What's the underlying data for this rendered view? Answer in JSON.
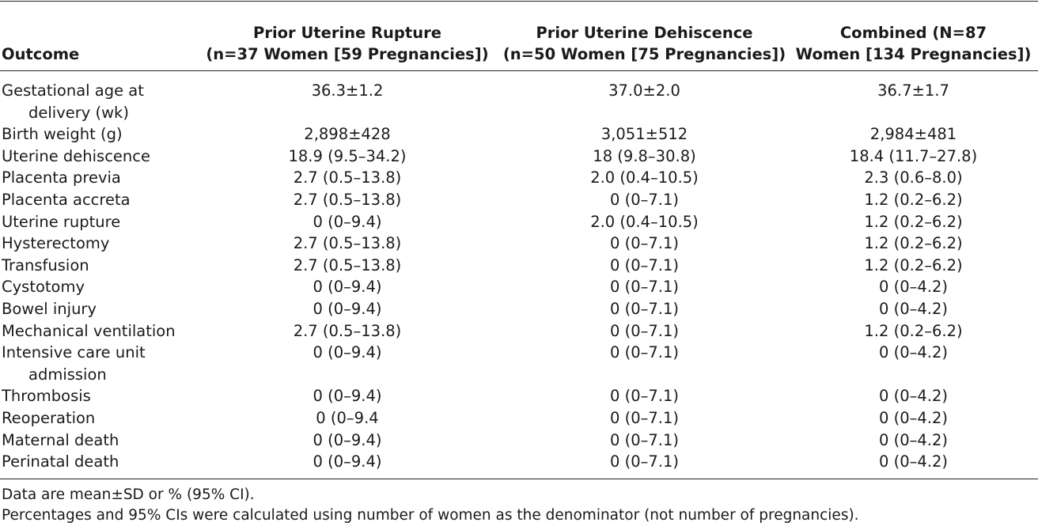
{
  "table": {
    "headers": {
      "outcome": "Outcome",
      "col1_line1": "Prior Uterine Rupture",
      "col1_line2": "(n=37 Women [59 Pregnancies])",
      "col2_line1": "Prior Uterine Dehiscence",
      "col2_line2": "(n=50 Women [75 Pregnancies])",
      "col3_line1": "Combined (N=87",
      "col3_line2": "Women [134 Pregnancies])"
    },
    "rows": [
      {
        "label": "Gestational age at",
        "label_cont": "delivery (wk)",
        "rupture": "36.3±1.2",
        "dehiscence": "37.0±2.0",
        "combined": "36.7±1.7"
      },
      {
        "label": "Birth weight (g)",
        "rupture": "2,898±428",
        "dehiscence": "3,051±512",
        "combined": "2,984±481"
      },
      {
        "label": "Uterine dehiscence",
        "rupture": "18.9 (9.5–34.2)",
        "dehiscence": "18 (9.8–30.8)",
        "combined": "18.4 (11.7–27.8)"
      },
      {
        "label": "Placenta previa",
        "rupture": "2.7 (0.5–13.8)",
        "dehiscence": "2.0 (0.4–10.5)",
        "combined": "2.3 (0.6–8.0)"
      },
      {
        "label": "Placenta accreta",
        "rupture": "2.7 (0.5–13.8)",
        "dehiscence": "0 (0–7.1)",
        "combined": "1.2 (0.2–6.2)"
      },
      {
        "label": "Uterine rupture",
        "rupture": "0 (0–9.4)",
        "dehiscence": "2.0 (0.4–10.5)",
        "combined": "1.2 (0.2–6.2)"
      },
      {
        "label": "Hysterectomy",
        "rupture": "2.7 (0.5–13.8)",
        "dehiscence": "0 (0–7.1)",
        "combined": "1.2 (0.2–6.2)"
      },
      {
        "label": "Transfusion",
        "rupture": "2.7 (0.5–13.8)",
        "dehiscence": "0 (0–7.1)",
        "combined": "1.2 (0.2–6.2)"
      },
      {
        "label": "Cystotomy",
        "rupture": "0 (0–9.4)",
        "dehiscence": "0 (0–7.1)",
        "combined": "0 (0–4.2)"
      },
      {
        "label": "Bowel injury",
        "rupture": "0 (0–9.4)",
        "dehiscence": "0 (0–7.1)",
        "combined": "0 (0–4.2)"
      },
      {
        "label": "Mechanical ventilation",
        "rupture": "2.7 (0.5–13.8)",
        "dehiscence": "0 (0–7.1)",
        "combined": "1.2 (0.2–6.2)"
      },
      {
        "label": "Intensive care unit",
        "label_cont": "admission",
        "rupture": "0 (0–9.4)",
        "dehiscence": "0 (0–7.1)",
        "combined": "0 (0–4.2)"
      },
      {
        "label": "Thrombosis",
        "rupture": "0 (0–9.4)",
        "dehiscence": "0 (0–7.1)",
        "combined": "0 (0–4.2)"
      },
      {
        "label": "Reoperation",
        "rupture": "0 (0–9.4",
        "dehiscence": "0 (0–7.1)",
        "combined": "0 (0–4.2)"
      },
      {
        "label": "Maternal death",
        "rupture": "0 (0–9.4)",
        "dehiscence": "0 (0–7.1)",
        "combined": "0 (0–4.2)"
      },
      {
        "label": "Perinatal death",
        "rupture": "0 (0–9.4)",
        "dehiscence": "0 (0–7.1)",
        "combined": "0 (0–4.2)"
      }
    ]
  },
  "footnotes": [
    "Data are mean±SD or % (95% CI).",
    "Percentages and 95% CIs were calculated using number of women as the denominator (not number of pregnancies)."
  ]
}
